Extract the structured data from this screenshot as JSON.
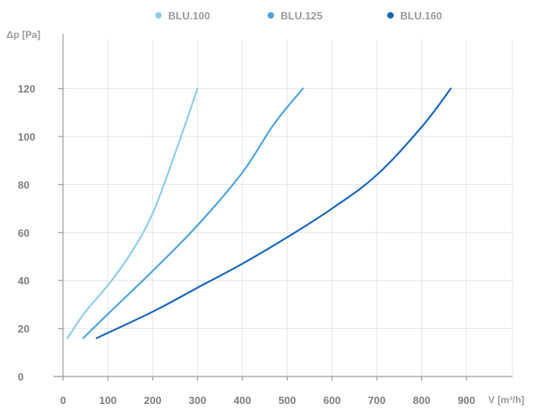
{
  "chart_data": {
    "type": "line",
    "xlabel": "V [m³/h]",
    "ylabel": "Δp [Pa]",
    "xlim": [
      0,
      1000
    ],
    "ylim": [
      0,
      130
    ],
    "x_ticks": [
      "0",
      "100",
      "200",
      "300",
      "400",
      "500",
      "600",
      "700",
      "800",
      "900"
    ],
    "y_ticks": [
      "0",
      "20",
      "40",
      "60",
      "80",
      "100",
      "120"
    ],
    "x_tick_values": [
      0,
      100,
      200,
      300,
      400,
      500,
      600,
      700,
      800,
      900
    ],
    "y_tick_values": [
      0,
      20,
      40,
      60,
      80,
      100,
      120
    ],
    "grid": true,
    "legend_position": "top-center",
    "series": [
      {
        "name": "BLU.100",
        "color": "#8ecbea",
        "points": [
          [
            10,
            16
          ],
          [
            50,
            27
          ],
          [
            100,
            38
          ],
          [
            150,
            51
          ],
          [
            200,
            68
          ],
          [
            250,
            93
          ],
          [
            300,
            120
          ]
        ]
      },
      {
        "name": "BLU.125",
        "color": "#4ba3dc",
        "points": [
          [
            45,
            16
          ],
          [
            100,
            26
          ],
          [
            200,
            44
          ],
          [
            300,
            63
          ],
          [
            400,
            85
          ],
          [
            470,
            105
          ],
          [
            535,
            120
          ]
        ]
      },
      {
        "name": "BLU.160",
        "color": "#1565b8",
        "points": [
          [
            75,
            16
          ],
          [
            200,
            27
          ],
          [
            300,
            37
          ],
          [
            400,
            47
          ],
          [
            500,
            58
          ],
          [
            600,
            70
          ],
          [
            700,
            84
          ],
          [
            800,
            104
          ],
          [
            865,
            120
          ]
        ]
      }
    ]
  }
}
